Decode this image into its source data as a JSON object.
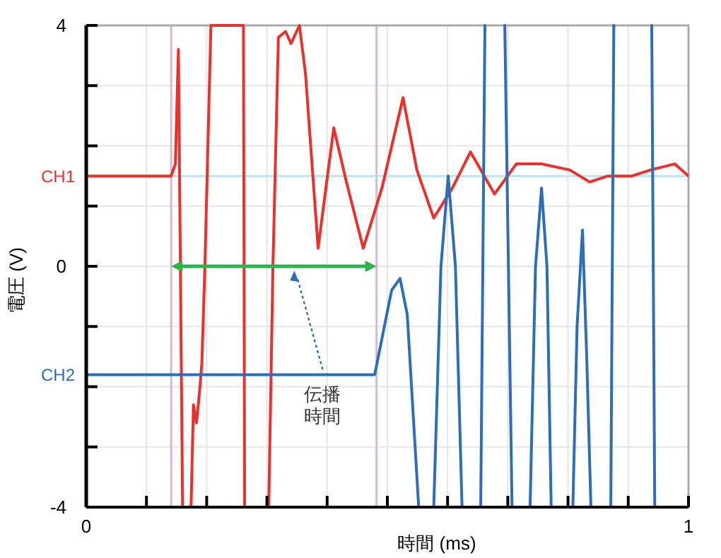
{
  "chart_data": {
    "type": "line",
    "xlabel": "時間 (ms)",
    "ylabel": "電圧 (V)",
    "xlim": [
      0,
      1
    ],
    "ylim": [
      -4,
      4
    ],
    "xticks": [
      0,
      {
        "value": 0.1,
        "label": null
      },
      {
        "value": 0.2,
        "label": null
      },
      {
        "value": 0.3,
        "label": null
      },
      {
        "value": 0.4,
        "label": null
      },
      {
        "value": 0.5,
        "label": null
      },
      {
        "value": 0.6,
        "label": null
      },
      {
        "value": 0.7,
        "label": null
      },
      {
        "value": 0.8,
        "label": null
      },
      {
        "value": 0.9,
        "label": null
      },
      1
    ],
    "yticks": [
      -4,
      {
        "value": -3,
        "label": null
      },
      {
        "value": -2,
        "label": null
      },
      {
        "value": -1,
        "label": null
      },
      0,
      {
        "value": 1,
        "label": null
      },
      {
        "value": 2,
        "label": null
      },
      {
        "value": 3,
        "label": null
      },
      4
    ],
    "grid": true,
    "line_style": "solid",
    "series": [
      {
        "name": "CH1",
        "color": "#e8322d",
        "x": [
          0,
          0.141,
          0.148,
          0.153,
          0.16,
          0.167,
          0.174,
          0.178,
          0.183,
          0.188,
          0.192,
          0.197,
          0.202,
          0.207,
          0.261,
          0.263,
          0.28,
          0.303,
          0.31,
          0.319,
          0.331,
          0.34,
          0.354,
          0.364,
          0.385,
          0.394,
          0.411,
          0.432,
          0.46,
          0.491,
          0.526,
          0.549,
          0.577,
          0.608,
          0.638,
          0.678,
          0.714,
          0.756,
          0.803,
          0.836,
          0.866,
          0.906,
          0.937,
          0.977,
          1.0
        ],
        "values": [
          1.5,
          1.5,
          1.7,
          3.6,
          -4,
          null,
          -4,
          -2.3,
          -2.6,
          -2.1,
          -1.6,
          0,
          2,
          4,
          4,
          -4,
          null,
          -4,
          0,
          3.8,
          3.9,
          3.7,
          4.0,
          3.2,
          0.3,
          1.0,
          2.3,
          1.4,
          0.3,
          1.3,
          2.8,
          1.6,
          0.8,
          1.3,
          1.9,
          1.2,
          1.7,
          1.7,
          1.6,
          1.4,
          1.5,
          1.5,
          1.6,
          1.7,
          1.5
        ]
      },
      {
        "name": "CH2",
        "color": "#2f6db5",
        "x": [
          0,
          0.479,
          0.491,
          0.507,
          0.521,
          0.533,
          0.552,
          0.565,
          0.577,
          0.589,
          0.601,
          0.613,
          0.624,
          0.64,
          0.655,
          0.662,
          0.68,
          0.695,
          0.707,
          0.72,
          0.737,
          0.746,
          0.756,
          0.765,
          0.772,
          0.79,
          0.808,
          0.815,
          0.824,
          0.831,
          0.838,
          0.85,
          0.871,
          0.876,
          0.9,
          0.939,
          0.944
        ],
        "values": [
          -1.8,
          -1.8,
          -1.2,
          -0.4,
          -0.2,
          -0.8,
          -4,
          null,
          -4,
          0,
          1.5,
          0,
          -4,
          null,
          -4,
          4,
          null,
          4,
          -4,
          null,
          -4,
          0,
          1.3,
          0,
          -4,
          null,
          -4,
          -1,
          0.6,
          -1.5,
          -4,
          null,
          -4,
          4,
          null,
          4,
          -4
        ]
      }
    ],
    "ref_lines": [
      {
        "axis": "x",
        "value": 0.141,
        "color": "#d9b8d6"
      },
      {
        "axis": "x",
        "value": 0.482,
        "color": "#d9b8d6"
      },
      {
        "axis": "y",
        "value": 1.5,
        "color": "#bfe3ea"
      }
    ],
    "annotations": [
      "伝播時間"
    ]
  }
}
